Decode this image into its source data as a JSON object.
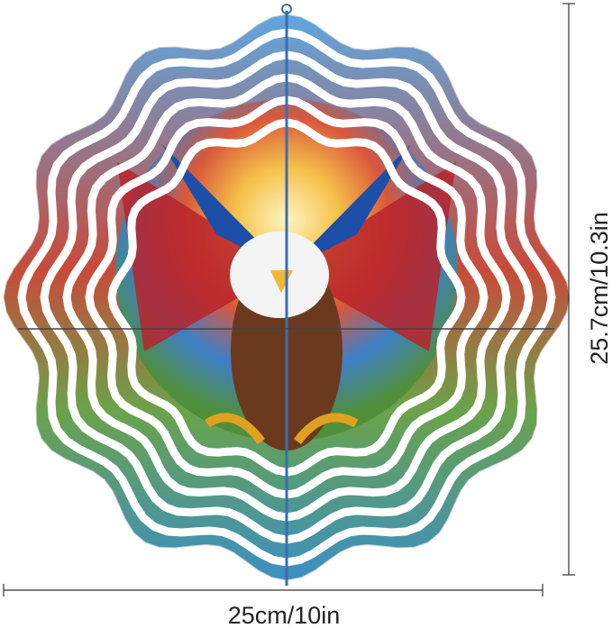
{
  "dimensions": {
    "height": "25.7cm/10.3in",
    "width": "25cm/10in"
  }
}
